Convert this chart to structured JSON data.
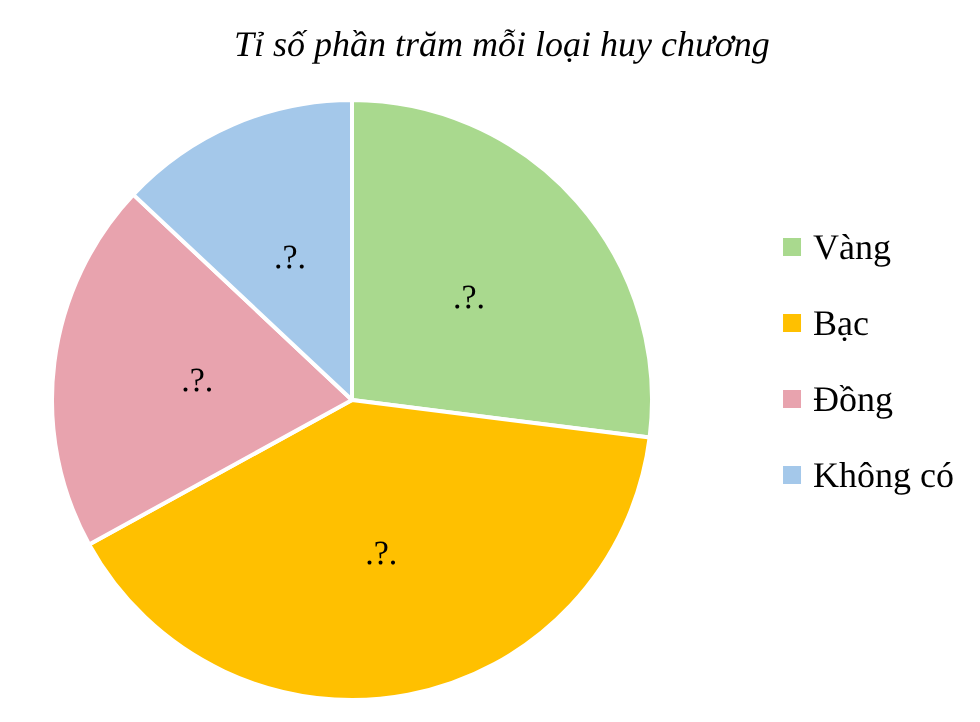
{
  "chart_data": {
    "type": "pie",
    "title": "Tỉ số phần trăm mỗi loại huy chương",
    "categories": [
      "Vàng",
      "Bạc",
      "Đồng",
      "Không có"
    ],
    "values": [
      27,
      40,
      20,
      13
    ],
    "colors": [
      "#a9d98e",
      "#ffc000",
      "#e8a3ae",
      "#a4c8ea"
    ],
    "value_labels": [
      ".?.",
      ".?.",
      ".?.",
      ".?."
    ],
    "legend": "right"
  }
}
